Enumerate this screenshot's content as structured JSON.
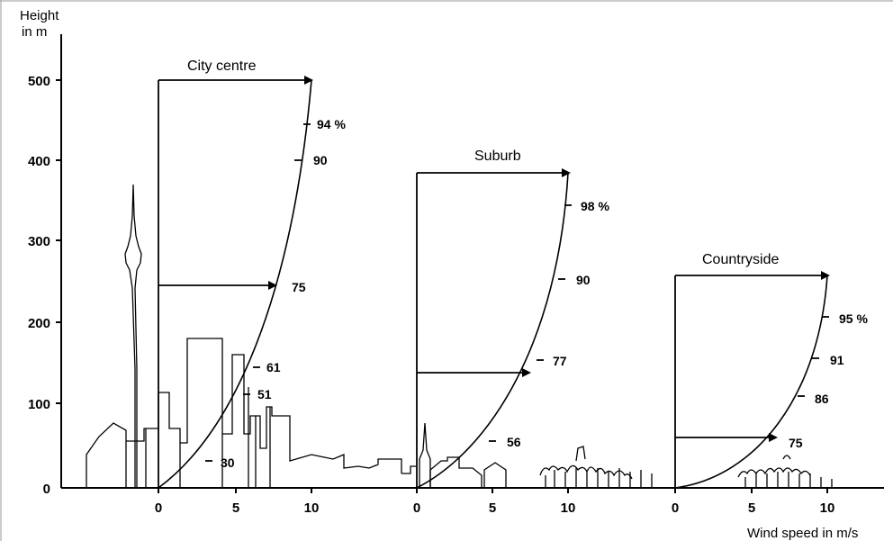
{
  "y_axis": {
    "label_line1": "Height",
    "label_line2": "in m",
    "ticks": [
      "500",
      "400",
      "300",
      "200",
      "100",
      "0"
    ]
  },
  "x_axis": {
    "label": "Wind speed in m/s",
    "ticks": [
      "0",
      "5",
      "10"
    ]
  },
  "panels": [
    {
      "title": "City centre",
      "gradient_height_m": 500,
      "percent_labels": [
        "94 %",
        "90",
        "75",
        "61",
        "51",
        "30"
      ],
      "reference_height_m": 250
    },
    {
      "title": "Suburb",
      "gradient_height_m": 385,
      "percent_labels": [
        "98 %",
        "90",
        "77",
        "56"
      ],
      "reference_height_m": 140
    },
    {
      "title": "Countryside",
      "gradient_height_m": 255,
      "percent_labels": [
        "95 %",
        "91",
        "86",
        "75"
      ],
      "reference_height_m": 60
    }
  ],
  "colors": {
    "ink": "#000000",
    "background": "#ffffff"
  }
}
